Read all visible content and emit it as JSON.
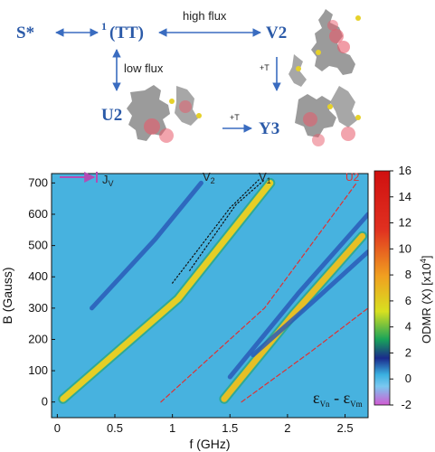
{
  "scheme": {
    "nodes": {
      "s_star": "S*",
      "tt_sup": "1",
      "tt": "(TT)",
      "v2": "V2",
      "u2": "U2",
      "y3": "Y3"
    },
    "arrows": {
      "high_flux": "high flux",
      "low_flux": "low flux",
      "plus_t_1": "+T",
      "plus_t_2": "+T"
    },
    "colors": {
      "node": "#2b5aa8",
      "arrow": "#3a6cc0"
    }
  },
  "chart_data": {
    "type": "heatmap",
    "xlabel": "f (GHz)",
    "ylabel": "B (Gauss)",
    "x_ticks": [
      "0",
      "0.5",
      "1",
      "1.5",
      "2",
      "2.5"
    ],
    "x_tick_values": [
      0,
      0.5,
      1,
      1.5,
      2,
      2.5
    ],
    "y_ticks": [
      "0",
      "100",
      "200",
      "300",
      "400",
      "500",
      "600",
      "700"
    ],
    "y_tick_values": [
      0,
      100,
      200,
      300,
      400,
      500,
      600,
      700
    ],
    "xlim": [
      -0.05,
      2.7
    ],
    "ylim": [
      -50,
      730
    ],
    "colorbar": {
      "label": "ODMR (X) [x10",
      "label_exp": "4",
      "label_end": "]",
      "ticks": [
        "-2",
        "0",
        "2",
        "4",
        "6",
        "8",
        "10",
        "12",
        "14",
        "16"
      ],
      "tick_values": [
        -2,
        0,
        2,
        4,
        6,
        8,
        10,
        12,
        14,
        16
      ],
      "range": [
        -2,
        16
      ],
      "colors": [
        "#d25ad2",
        "#3ab0e0",
        "#1a2a8c",
        "#19a35a",
        "#d8e020",
        "#f0a020",
        "#e03020",
        "#d01010"
      ]
    },
    "background_value": 0,
    "annotations": {
      "jv_label": "J",
      "jv_sub": "V",
      "v2_label": "V",
      "v2_sub": "2",
      "v1_label": "V",
      "v1_sub": "1",
      "u2_label": "U2",
      "eps_a": "ε",
      "eps_a_sub": "Vn",
      "eps_dash": " - ",
      "eps_b": "ε",
      "eps_b_sub": "Vm"
    },
    "series": [
      {
        "kind": "bright_line",
        "color": "#f0d020",
        "x": [
          0.05,
          1.05,
          1.85
        ],
        "y": [
          10,
          330,
          700
        ]
      },
      {
        "kind": "bright_line",
        "color": "#f0c020",
        "x": [
          1.45,
          2.05,
          2.65
        ],
        "y": [
          10,
          280,
          530
        ]
      },
      {
        "kind": "blue_line",
        "color": "#2a5ab8",
        "x": [
          1.5,
          2.1,
          2.7
        ],
        "y": [
          80,
          350,
          600
        ]
      },
      {
        "kind": "blue_line",
        "color": "#2a5ab8",
        "x": [
          1.7,
          2.25,
          2.7
        ],
        "y": [
          150,
          330,
          480
        ]
      },
      {
        "kind": "blue_line",
        "color": "#2a5ab8",
        "x": [
          0.3,
          0.85,
          1.25
        ],
        "y": [
          300,
          520,
          700
        ]
      },
      {
        "kind": "u2_dashed",
        "color": "#e03030",
        "x": [
          0.9,
          1.8,
          2.6
        ],
        "y": [
          0,
          300,
          700
        ]
      },
      {
        "kind": "u2_dashed",
        "color": "#e03030",
        "x": [
          1.6,
          2.2,
          2.7
        ],
        "y": [
          0,
          160,
          300
        ]
      },
      {
        "kind": "v_dotted",
        "color": "#111111",
        "x": [
          1.0,
          1.5,
          1.75
        ],
        "y": [
          380,
          620,
          710
        ]
      },
      {
        "kind": "v_dotted",
        "color": "#111111",
        "x": [
          1.15,
          1.55,
          1.8
        ],
        "y": [
          420,
          630,
          710
        ]
      }
    ]
  }
}
